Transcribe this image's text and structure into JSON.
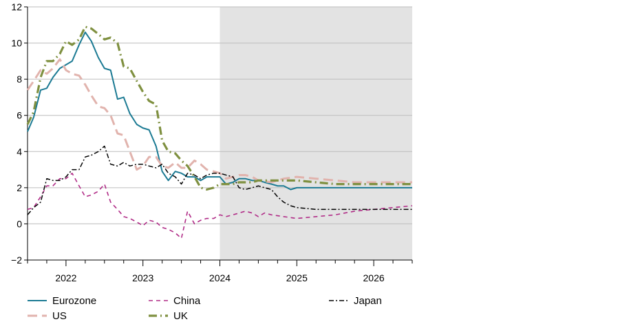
{
  "chart_data": {
    "type": "line",
    "title": "",
    "xlabel": "",
    "ylabel": "",
    "x_tick_labels": [
      "2022",
      "2023",
      "2024",
      "2025",
      "2026"
    ],
    "xlim": [
      2021.5,
      2026.5
    ],
    "ylim": [
      -2,
      12
    ],
    "y_ticks": [
      -2,
      0,
      2,
      4,
      6,
      8,
      10,
      12
    ],
    "y_tick_labels": [
      "−2",
      "0",
      "2",
      "4",
      "6",
      "8",
      "10",
      "12"
    ],
    "grid": "horizontal",
    "shaded_region": {
      "x_start": 2024.0,
      "x_end": 2026.5,
      "color": "#e3e3e3"
    },
    "legend_position": "bottom",
    "series": [
      {
        "name": "Eurozone",
        "color": "#1b7a93",
        "style": "solid",
        "points": [
          [
            2021.5,
            5.1
          ],
          [
            2021.58,
            5.9
          ],
          [
            2021.67,
            7.4
          ],
          [
            2021.75,
            7.5
          ],
          [
            2021.83,
            8.1
          ],
          [
            2021.92,
            8.6
          ],
          [
            2022.0,
            8.8
          ],
          [
            2022.08,
            9.0
          ],
          [
            2022.17,
            9.9
          ],
          [
            2022.25,
            10.6
          ],
          [
            2022.33,
            10.1
          ],
          [
            2022.42,
            9.2
          ],
          [
            2022.5,
            8.6
          ],
          [
            2022.58,
            8.5
          ],
          [
            2022.67,
            6.9
          ],
          [
            2022.75,
            7.0
          ],
          [
            2022.83,
            6.1
          ],
          [
            2022.92,
            5.5
          ],
          [
            2023.0,
            5.3
          ],
          [
            2023.08,
            5.2
          ],
          [
            2023.17,
            4.3
          ],
          [
            2023.25,
            2.9
          ],
          [
            2023.33,
            2.4
          ],
          [
            2023.42,
            2.9
          ],
          [
            2023.5,
            2.8
          ],
          [
            2023.58,
            2.6
          ],
          [
            2023.67,
            2.6
          ],
          [
            2023.75,
            2.4
          ],
          [
            2023.83,
            2.6
          ],
          [
            2023.92,
            2.6
          ],
          [
            2024.0,
            2.6
          ],
          [
            2024.08,
            2.2
          ],
          [
            2024.17,
            2.3
          ],
          [
            2024.25,
            2.5
          ],
          [
            2024.33,
            2.5
          ],
          [
            2024.42,
            2.4
          ],
          [
            2024.5,
            2.4
          ],
          [
            2024.58,
            2.3
          ],
          [
            2024.67,
            2.2
          ],
          [
            2024.75,
            2.1
          ],
          [
            2024.83,
            2.1
          ],
          [
            2024.92,
            1.9
          ],
          [
            2025.0,
            2.0
          ],
          [
            2025.25,
            2.0
          ],
          [
            2025.5,
            2.0
          ],
          [
            2025.75,
            2.0
          ],
          [
            2026.0,
            2.0
          ],
          [
            2026.25,
            2.0
          ],
          [
            2026.5,
            2.0
          ]
        ]
      },
      {
        "name": "US",
        "color": "#e1b3ad",
        "style": "long-dash",
        "points": [
          [
            2021.5,
            7.4
          ],
          [
            2021.58,
            7.9
          ],
          [
            2021.67,
            8.5
          ],
          [
            2021.75,
            8.3
          ],
          [
            2021.83,
            8.6
          ],
          [
            2021.92,
            9.1
          ],
          [
            2022.0,
            8.5
          ],
          [
            2022.08,
            8.3
          ],
          [
            2022.17,
            8.2
          ],
          [
            2022.25,
            7.7
          ],
          [
            2022.33,
            7.1
          ],
          [
            2022.42,
            6.5
          ],
          [
            2022.5,
            6.4
          ],
          [
            2022.58,
            6.0
          ],
          [
            2022.67,
            5.0
          ],
          [
            2022.75,
            4.9
          ],
          [
            2022.83,
            4.0
          ],
          [
            2022.92,
            3.0
          ],
          [
            2023.0,
            3.2
          ],
          [
            2023.08,
            3.7
          ],
          [
            2023.17,
            3.7
          ],
          [
            2023.25,
            3.2
          ],
          [
            2023.33,
            3.1
          ],
          [
            2023.42,
            3.4
          ],
          [
            2023.5,
            3.1
          ],
          [
            2023.58,
            3.1
          ],
          [
            2023.67,
            3.5
          ],
          [
            2023.75,
            3.3
          ],
          [
            2023.83,
            3.0
          ],
          [
            2023.92,
            2.9
          ],
          [
            2024.0,
            2.8
          ],
          [
            2024.08,
            2.5
          ],
          [
            2024.17,
            2.6
          ],
          [
            2024.25,
            2.7
          ],
          [
            2024.33,
            2.7
          ],
          [
            2024.42,
            2.6
          ],
          [
            2024.5,
            2.4
          ],
          [
            2024.67,
            2.3
          ],
          [
            2024.83,
            2.5
          ],
          [
            2025.0,
            2.6
          ],
          [
            2025.25,
            2.5
          ],
          [
            2025.5,
            2.4
          ],
          [
            2025.75,
            2.3
          ],
          [
            2026.0,
            2.3
          ],
          [
            2026.25,
            2.3
          ],
          [
            2026.5,
            2.3
          ]
        ]
      },
      {
        "name": "China",
        "color": "#b02a86",
        "style": "dash",
        "points": [
          [
            2021.5,
            0.8
          ],
          [
            2021.58,
            0.9
          ],
          [
            2021.67,
            1.5
          ],
          [
            2021.75,
            2.1
          ],
          [
            2021.83,
            2.1
          ],
          [
            2021.92,
            2.5
          ],
          [
            2022.0,
            2.5
          ],
          [
            2022.08,
            2.8
          ],
          [
            2022.17,
            2.1
          ],
          [
            2022.25,
            1.5
          ],
          [
            2022.33,
            1.6
          ],
          [
            2022.42,
            1.8
          ],
          [
            2022.5,
            2.2
          ],
          [
            2022.58,
            1.2
          ],
          [
            2022.67,
            0.8
          ],
          [
            2022.75,
            0.4
          ],
          [
            2022.83,
            0.3
          ],
          [
            2022.92,
            0.1
          ],
          [
            2023.0,
            -0.1
          ],
          [
            2023.08,
            0.2
          ],
          [
            2023.17,
            0.1
          ],
          [
            2023.25,
            -0.2
          ],
          [
            2023.33,
            -0.3
          ],
          [
            2023.42,
            -0.5
          ],
          [
            2023.5,
            -0.8
          ],
          [
            2023.58,
            0.7
          ],
          [
            2023.67,
            0.0
          ],
          [
            2023.75,
            0.2
          ],
          [
            2023.83,
            0.3
          ],
          [
            2023.92,
            0.3
          ],
          [
            2024.0,
            0.5
          ],
          [
            2024.08,
            0.4
          ],
          [
            2024.17,
            0.5
          ],
          [
            2024.25,
            0.6
          ],
          [
            2024.33,
            0.7
          ],
          [
            2024.42,
            0.6
          ],
          [
            2024.5,
            0.4
          ],
          [
            2024.58,
            0.6
          ],
          [
            2024.67,
            0.5
          ],
          [
            2024.83,
            0.4
          ],
          [
            2025.0,
            0.3
          ],
          [
            2025.25,
            0.4
          ],
          [
            2025.5,
            0.5
          ],
          [
            2025.75,
            0.7
          ],
          [
            2026.0,
            0.8
          ],
          [
            2026.25,
            0.9
          ],
          [
            2026.5,
            1.0
          ]
        ]
      },
      {
        "name": "UK",
        "color": "#7f9040",
        "style": "dash-dot",
        "points": [
          [
            2021.5,
            5.5
          ],
          [
            2021.58,
            6.2
          ],
          [
            2021.67,
            8.1
          ],
          [
            2021.75,
            9.0
          ],
          [
            2021.83,
            9.0
          ],
          [
            2021.92,
            9.4
          ],
          [
            2022.0,
            10.1
          ],
          [
            2022.08,
            9.9
          ],
          [
            2022.17,
            10.2
          ],
          [
            2022.25,
            10.9
          ],
          [
            2022.33,
            10.8
          ],
          [
            2022.42,
            10.5
          ],
          [
            2022.5,
            10.2
          ],
          [
            2022.58,
            10.3
          ],
          [
            2022.67,
            10.0
          ],
          [
            2022.75,
            8.7
          ],
          [
            2022.83,
            8.6
          ],
          [
            2022.92,
            7.9
          ],
          [
            2023.0,
            7.3
          ],
          [
            2023.08,
            6.8
          ],
          [
            2023.17,
            6.6
          ],
          [
            2023.25,
            4.6
          ],
          [
            2023.33,
            4.0
          ],
          [
            2023.42,
            3.9
          ],
          [
            2023.5,
            3.5
          ],
          [
            2023.58,
            3.2
          ],
          [
            2023.67,
            2.6
          ],
          [
            2023.75,
            2.0
          ],
          [
            2023.83,
            1.9
          ],
          [
            2023.92,
            2.0
          ],
          [
            2024.0,
            2.2
          ],
          [
            2024.08,
            2.2
          ],
          [
            2024.17,
            2.2
          ],
          [
            2024.25,
            2.3
          ],
          [
            2024.33,
            2.3
          ],
          [
            2024.42,
            2.3
          ],
          [
            2024.5,
            2.4
          ],
          [
            2024.75,
            2.4
          ],
          [
            2025.0,
            2.4
          ],
          [
            2025.25,
            2.3
          ],
          [
            2025.5,
            2.2
          ],
          [
            2025.75,
            2.2
          ],
          [
            2026.0,
            2.2
          ],
          [
            2026.25,
            2.2
          ],
          [
            2026.5,
            2.2
          ]
        ]
      },
      {
        "name": "Japan",
        "color": "#000000",
        "style": "dash-dot",
        "points": [
          [
            2021.5,
            0.5
          ],
          [
            2021.58,
            0.9
          ],
          [
            2021.67,
            1.2
          ],
          [
            2021.75,
            2.5
          ],
          [
            2021.83,
            2.4
          ],
          [
            2021.92,
            2.4
          ],
          [
            2022.0,
            2.6
          ],
          [
            2022.08,
            3.0
          ],
          [
            2022.17,
            3.0
          ],
          [
            2022.25,
            3.7
          ],
          [
            2022.33,
            3.8
          ],
          [
            2022.42,
            4.0
          ],
          [
            2022.5,
            4.3
          ],
          [
            2022.58,
            3.3
          ],
          [
            2022.67,
            3.2
          ],
          [
            2022.75,
            3.4
          ],
          [
            2022.83,
            3.2
          ],
          [
            2022.92,
            3.3
          ],
          [
            2023.0,
            3.3
          ],
          [
            2023.08,
            3.2
          ],
          [
            2023.17,
            3.1
          ],
          [
            2023.25,
            3.3
          ],
          [
            2023.33,
            2.8
          ],
          [
            2023.42,
            2.6
          ],
          [
            2023.5,
            2.2
          ],
          [
            2023.58,
            2.8
          ],
          [
            2023.67,
            2.7
          ],
          [
            2023.75,
            2.5
          ],
          [
            2023.83,
            2.7
          ],
          [
            2023.92,
            2.8
          ],
          [
            2024.0,
            2.8
          ],
          [
            2024.08,
            2.7
          ],
          [
            2024.17,
            2.6
          ],
          [
            2024.25,
            2.0
          ],
          [
            2024.33,
            1.9
          ],
          [
            2024.42,
            2.0
          ],
          [
            2024.5,
            2.1
          ],
          [
            2024.58,
            2.0
          ],
          [
            2024.67,
            1.9
          ],
          [
            2024.75,
            1.5
          ],
          [
            2024.83,
            1.2
          ],
          [
            2024.92,
            1.0
          ],
          [
            2025.0,
            0.9
          ],
          [
            2025.25,
            0.8
          ],
          [
            2025.5,
            0.8
          ],
          [
            2025.75,
            0.8
          ],
          [
            2026.0,
            0.8
          ],
          [
            2026.25,
            0.8
          ],
          [
            2026.5,
            0.8
          ]
        ]
      }
    ]
  }
}
